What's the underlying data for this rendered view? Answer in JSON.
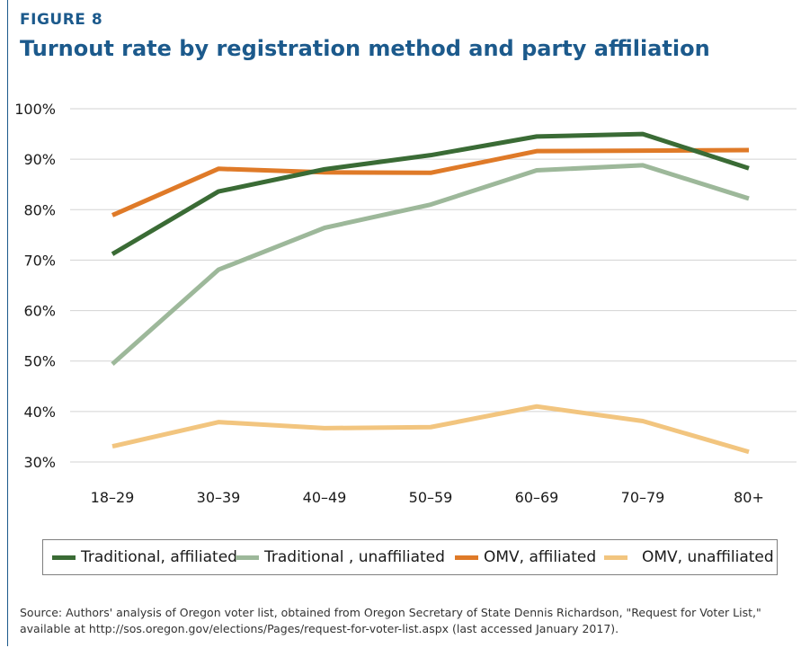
{
  "figure": {
    "label": "FIGURE 8",
    "title": "Turnout rate by registration method and party affiliation"
  },
  "source": {
    "line1": "Source: Authors' analysis of Oregon voter list, obtained from Oregon Secretary of State Dennis Richardson, \"Request for Voter List,\"",
    "line2": "available at http://sos.oregon.gov/elections/Pages/request-for-voter-list.aspx (last accessed January 2017)."
  },
  "chart_data": {
    "type": "line",
    "title": "Turnout rate by registration method and party affiliation",
    "xlabel": "",
    "ylabel": "",
    "categories": [
      "18–29",
      "30–39",
      "40–49",
      "50–59",
      "60–69",
      "70–79",
      "80+"
    ],
    "yticks": [
      "30%",
      "40%",
      "50%",
      "60%",
      "70%",
      "80%",
      "90%",
      "100%"
    ],
    "ylim": [
      30,
      100
    ],
    "grid": true,
    "legend_position": "bottom",
    "series": [
      {
        "name": "Traditional, affiliated",
        "color": "#3a6b35",
        "values": [
          71.2,
          83.6,
          88.0,
          90.8,
          94.5,
          95.0,
          88.2
        ]
      },
      {
        "name": "Traditional , unaffiliated",
        "color": "#9db89a",
        "values": [
          49.4,
          68.1,
          76.4,
          81.0,
          87.8,
          88.8,
          82.2
        ]
      },
      {
        "name": "OMV, affiliated",
        "color": "#df7a28",
        "values": [
          78.9,
          88.1,
          87.4,
          87.3,
          91.6,
          91.7,
          91.8
        ]
      },
      {
        "name": "OMV, unaffiliated",
        "color": "#f2c57f",
        "values": [
          33.1,
          37.9,
          36.7,
          36.9,
          41.0,
          38.1,
          32.0
        ]
      }
    ]
  }
}
